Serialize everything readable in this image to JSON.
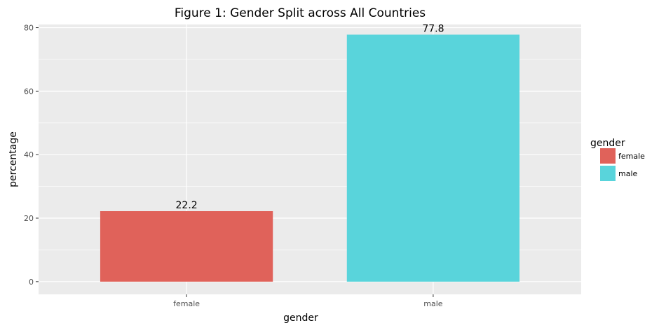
{
  "chart_data": {
    "type": "bar",
    "title": "Figure 1: Gender Split across All Countries",
    "xlabel": "gender",
    "ylabel": "percentage",
    "categories": [
      "female",
      "male"
    ],
    "values": [
      22.2,
      77.8
    ],
    "value_labels": [
      "22.2",
      "77.8"
    ],
    "ylim": [
      -4,
      81
    ],
    "yticks": [
      0,
      20,
      40,
      60,
      80
    ],
    "ytick_labels": [
      "0",
      "20",
      "40",
      "60",
      "80"
    ],
    "grid": true,
    "legend": {
      "title": "gender",
      "position": "right",
      "entries": [
        {
          "label": "female",
          "color": "#E0625A"
        },
        {
          "label": "male",
          "color": "#59D4DB"
        }
      ]
    },
    "colors": [
      "#E0625A",
      "#59D4DB"
    ]
  }
}
